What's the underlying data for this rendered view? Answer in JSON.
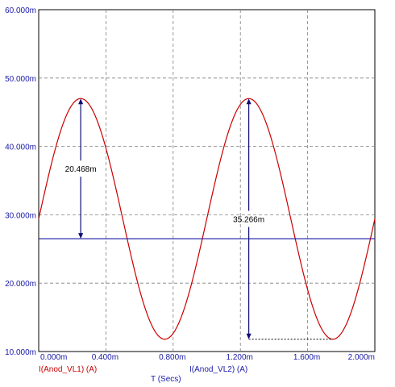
{
  "chart_data": {
    "type": "line",
    "xlabel": "T (Secs)",
    "xlim": [
      0,
      2.0
    ],
    "ylim": [
      10,
      60
    ],
    "grid": true,
    "x_ticks": [
      0,
      0.4,
      0.8,
      1.2,
      1.6,
      2.0
    ],
    "x_tick_labels": [
      "0.000m",
      "0.400m",
      "0.800m",
      "1.200m",
      "1.600m",
      "2.000m"
    ],
    "y_ticks": [
      10,
      20,
      30,
      40,
      50,
      60
    ],
    "y_tick_labels": [
      "10.000m",
      "20.000m",
      "30.000m",
      "40.000m",
      "50.000m",
      "60.000m"
    ],
    "series": [
      {
        "name": "I(Anod_VL1) (A)",
        "kind": "sine",
        "offset": 29.4,
        "amplitude": 17.6,
        "period": 1.0,
        "x_at_peak": 0.25,
        "color": "#cc0000"
      },
      {
        "name": "I(Anod_VL2) (A)",
        "kind": "constant",
        "value": 26.5,
        "color": "#1a1aa6"
      }
    ],
    "annotations": [
      {
        "text": "20.468m",
        "x": 0.25,
        "y_from": 26.5,
        "y_to": 47.0
      },
      {
        "text": "35.266m",
        "x": 1.25,
        "y_from": 11.8,
        "y_to": 47.0,
        "x_dotted_to": 1.75
      }
    ]
  }
}
